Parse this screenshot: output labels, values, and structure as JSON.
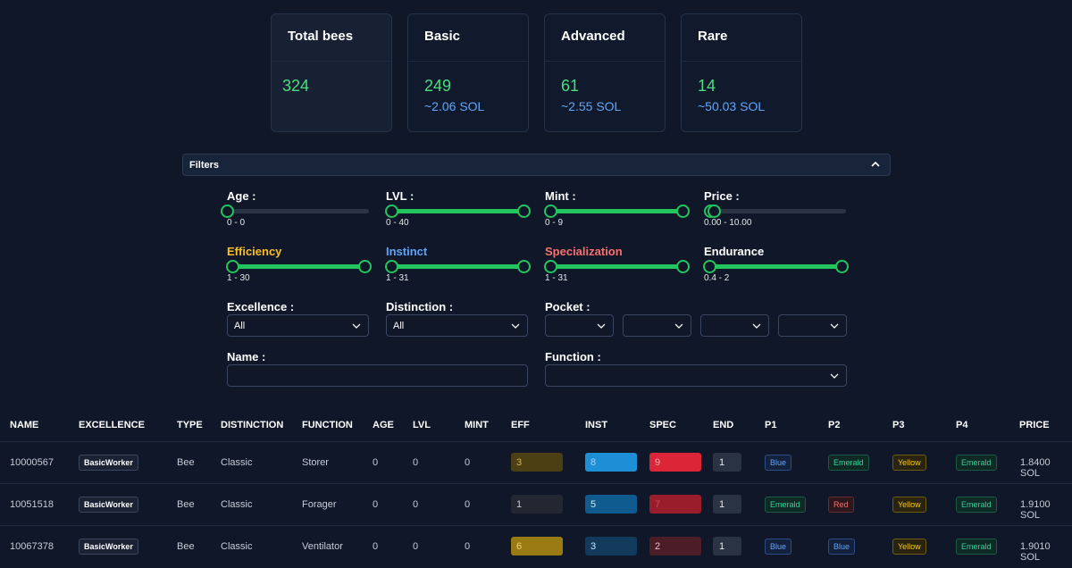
{
  "stats": {
    "total": {
      "title": "Total bees",
      "count": "324"
    },
    "basic": {
      "title": "Basic",
      "count": "249",
      "sol": "~2.06 SOL"
    },
    "advanced": {
      "title": "Advanced",
      "count": "61",
      "sol": "~2.55 SOL"
    },
    "rare": {
      "title": "Rare",
      "count": "14",
      "sol": "~50.03 SOL"
    }
  },
  "filters": {
    "title": "Filters",
    "age": {
      "label": "Age :",
      "range": "0 - 0",
      "min": 0,
      "max": 0
    },
    "lvl": {
      "label": "LVL :",
      "range": "0 - 40",
      "min": 0,
      "max": 40
    },
    "mint": {
      "label": "Mint :",
      "range": "0 - 9",
      "min": 0,
      "max": 9
    },
    "price": {
      "label": "Price :",
      "range": "0.00 - 10.00",
      "min": 0,
      "max": 10
    },
    "efficiency": {
      "label": "Efficiency",
      "range": "1 - 30",
      "color": "#fbbf24"
    },
    "instinct": {
      "label": "Instinct",
      "range": "1 - 31",
      "color": "#60a5fa"
    },
    "specialization": {
      "label": "Specialization",
      "range": "1 - 31",
      "color": "#f87171"
    },
    "endurance": {
      "label": "Endurance",
      "range": "0.4 - 2",
      "color": "#ffffff"
    },
    "excellence": {
      "label": "Excellence :",
      "value": "All"
    },
    "distinction": {
      "label": "Distinction :",
      "value": "All"
    },
    "pocket": {
      "label": "Pocket :"
    },
    "name": {
      "label": "Name :",
      "value": ""
    },
    "function": {
      "label": "Function :",
      "value": ""
    }
  },
  "table": {
    "headers": [
      "NAME",
      "EXCELLENCE",
      "TYPE",
      "DISTINCTION",
      "FUNCTION",
      "AGE",
      "LVL",
      "MINT",
      "EFF",
      "INST",
      "SPEC",
      "END",
      "P1",
      "P2",
      "P3",
      "P4",
      "PRICE"
    ],
    "rows": [
      {
        "name": "10000567",
        "excellence": "BasicWorker",
        "type": "Bee",
        "distinction": "Classic",
        "function": "Storer",
        "age": "0",
        "lvl": "0",
        "mint": "0",
        "eff": "3",
        "inst": "8",
        "spec": "9",
        "end": "1",
        "p1": "Blue",
        "p2": "Emerald",
        "p3": "Yellow",
        "p4": "Emerald",
        "price": "1.8400 SOL"
      },
      {
        "name": "10051518",
        "excellence": "BasicWorker",
        "type": "Bee",
        "distinction": "Classic",
        "function": "Forager",
        "age": "0",
        "lvl": "0",
        "mint": "0",
        "eff": "1",
        "inst": "5",
        "spec": "7",
        "end": "1",
        "p1": "Emerald",
        "p2": "Red",
        "p3": "Yellow",
        "p4": "Emerald",
        "price": "1.9100 SOL"
      },
      {
        "name": "10067378",
        "excellence": "BasicWorker",
        "type": "Bee",
        "distinction": "Classic",
        "function": "Ventilator",
        "age": "0",
        "lvl": "0",
        "mint": "0",
        "eff": "6",
        "inst": "3",
        "spec": "2",
        "end": "1",
        "p1": "Blue",
        "p2": "Blue",
        "p3": "Yellow",
        "p4": "Emerald",
        "price": "1.9010 SOL"
      }
    ]
  }
}
